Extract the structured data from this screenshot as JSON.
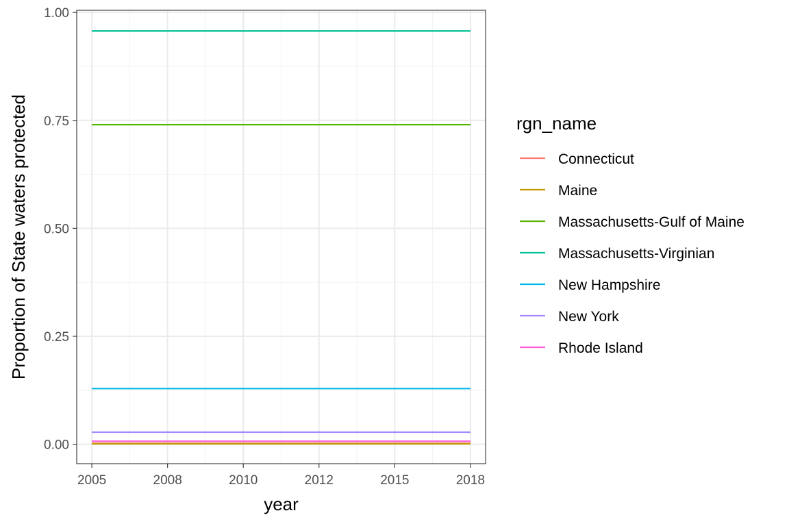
{
  "chart_data": {
    "type": "line",
    "xlabel": "year",
    "ylabel": "Proportion of State waters protected",
    "xlim": [
      2004.5,
      2018
    ],
    "ylim": [
      -0.045,
      1.005
    ],
    "x_ticks": [
      {
        "value": 2005,
        "label": "2005"
      },
      {
        "value": 2007.5,
        "label": "2008"
      },
      {
        "value": 2010,
        "label": "2010"
      },
      {
        "value": 2012.5,
        "label": "2012"
      },
      {
        "value": 2015,
        "label": "2015"
      },
      {
        "value": 2017.5,
        "label": "2018"
      }
    ],
    "y_ticks": [
      {
        "value": 0,
        "label": "0.00"
      },
      {
        "value": 0.25,
        "label": "0.25"
      },
      {
        "value": 0.5,
        "label": "0.50"
      },
      {
        "value": 0.75,
        "label": "0.75"
      },
      {
        "value": 1.0,
        "label": "1.00"
      }
    ],
    "grid": true,
    "legend_title": "rgn_name",
    "legend_position": "right",
    "x_range": [
      2005,
      2017.5
    ],
    "series": [
      {
        "name": "Connecticut",
        "color": "#F8766D",
        "values": [
          0.002,
          0.002
        ]
      },
      {
        "name": "Maine",
        "color": "#C49A00",
        "values": [
          0.001,
          0.001
        ]
      },
      {
        "name": "Massachusetts-Gulf of Maine",
        "color": "#53B400",
        "values": [
          0.74,
          0.74
        ]
      },
      {
        "name": "Massachusetts-Virginian",
        "color": "#00C094",
        "values": [
          0.957,
          0.957
        ]
      },
      {
        "name": "New Hampshire",
        "color": "#00B6EB",
        "values": [
          0.129,
          0.129
        ]
      },
      {
        "name": "New York",
        "color": "#A58AFF",
        "values": [
          0.028,
          0.028
        ]
      },
      {
        "name": "Rhode Island",
        "color": "#FB61D7",
        "values": [
          0.007,
          0.007
        ]
      }
    ]
  }
}
